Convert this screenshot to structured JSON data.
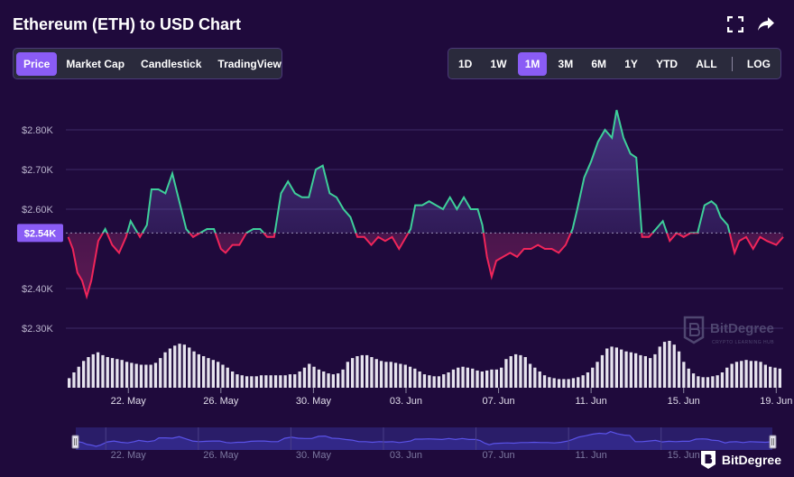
{
  "header": {
    "title": "Ethereum (ETH) to USD Chart"
  },
  "icons": {
    "fullscreen": "fullscreen-icon",
    "share": "share-icon"
  },
  "tabs": [
    {
      "label": "Price",
      "active": true
    },
    {
      "label": "Market Cap",
      "active": false
    },
    {
      "label": "Candlestick",
      "active": false
    },
    {
      "label": "TradingView",
      "active": false
    }
  ],
  "ranges": [
    {
      "label": "1D",
      "active": false
    },
    {
      "label": "1W",
      "active": false
    },
    {
      "label": "1M",
      "active": true
    },
    {
      "label": "3M",
      "active": false
    },
    {
      "label": "6M",
      "active": false
    },
    {
      "label": "1Y",
      "active": false
    },
    {
      "label": "YTD",
      "active": false
    },
    {
      "label": "ALL",
      "active": false
    }
  ],
  "log_label": "LOG",
  "watermark": {
    "name": "BitDegree",
    "sub": "CRYPTO LEARNING HUB"
  },
  "brand": {
    "name": "BitDegree"
  },
  "colors": {
    "up": "#3ecf9a",
    "down": "#f0255a",
    "accent": "#8a5cf5",
    "volume": "#e6e3ee",
    "navigator_line": "#5a52e8"
  },
  "chart_data": {
    "type": "area",
    "title": "Ethereum (ETH) to USD Chart",
    "baseline": 2.54,
    "current_price_label": "$2.54K",
    "ylim": [
      2.2,
      2.9
    ],
    "y_ticks": [
      {
        "label": "$2.30K",
        "value": 2.3
      },
      {
        "label": "$2.40K",
        "value": 2.4
      },
      {
        "label": "$2.60K",
        "value": 2.6
      },
      {
        "label": "$2.70K",
        "value": 2.7
      },
      {
        "label": "$2.80K",
        "value": 2.8
      }
    ],
    "xlim": [
      19.3,
      50.3
    ],
    "x_ticks": [
      {
        "label": "22. May",
        "x": 22
      },
      {
        "label": "26. May",
        "x": 26
      },
      {
        "label": "30. May",
        "x": 30
      },
      {
        "label": "03. Jun",
        "x": 34
      },
      {
        "label": "07. Jun",
        "x": 38
      },
      {
        "label": "11. Jun",
        "x": 42
      },
      {
        "label": "15. Jun",
        "x": 46
      },
      {
        "label": "19. Jun",
        "x": 50
      }
    ],
    "price": [
      {
        "x": 19.4,
        "y": 2.53
      },
      {
        "x": 19.6,
        "y": 2.5
      },
      {
        "x": 19.8,
        "y": 2.44
      },
      {
        "x": 20.0,
        "y": 2.42
      },
      {
        "x": 20.2,
        "y": 2.38
      },
      {
        "x": 20.4,
        "y": 2.42
      },
      {
        "x": 20.7,
        "y": 2.52
      },
      {
        "x": 21.0,
        "y": 2.55
      },
      {
        "x": 21.3,
        "y": 2.51
      },
      {
        "x": 21.6,
        "y": 2.49
      },
      {
        "x": 21.9,
        "y": 2.53
      },
      {
        "x": 22.1,
        "y": 2.57
      },
      {
        "x": 22.3,
        "y": 2.55
      },
      {
        "x": 22.5,
        "y": 2.53
      },
      {
        "x": 22.8,
        "y": 2.56
      },
      {
        "x": 23.0,
        "y": 2.65
      },
      {
        "x": 23.3,
        "y": 2.65
      },
      {
        "x": 23.6,
        "y": 2.64
      },
      {
        "x": 23.9,
        "y": 2.69
      },
      {
        "x": 24.2,
        "y": 2.62
      },
      {
        "x": 24.5,
        "y": 2.55
      },
      {
        "x": 24.8,
        "y": 2.53
      },
      {
        "x": 25.1,
        "y": 2.54
      },
      {
        "x": 25.4,
        "y": 2.55
      },
      {
        "x": 25.7,
        "y": 2.55
      },
      {
        "x": 26.0,
        "y": 2.5
      },
      {
        "x": 26.2,
        "y": 2.49
      },
      {
        "x": 26.5,
        "y": 2.51
      },
      {
        "x": 26.8,
        "y": 2.51
      },
      {
        "x": 27.1,
        "y": 2.54
      },
      {
        "x": 27.4,
        "y": 2.55
      },
      {
        "x": 27.7,
        "y": 2.55
      },
      {
        "x": 28.0,
        "y": 2.53
      },
      {
        "x": 28.3,
        "y": 2.53
      },
      {
        "x": 28.6,
        "y": 2.64
      },
      {
        "x": 28.9,
        "y": 2.67
      },
      {
        "x": 29.2,
        "y": 2.64
      },
      {
        "x": 29.5,
        "y": 2.63
      },
      {
        "x": 29.8,
        "y": 2.63
      },
      {
        "x": 30.1,
        "y": 2.7
      },
      {
        "x": 30.4,
        "y": 2.71
      },
      {
        "x": 30.7,
        "y": 2.64
      },
      {
        "x": 31.0,
        "y": 2.63
      },
      {
        "x": 31.3,
        "y": 2.6
      },
      {
        "x": 31.6,
        "y": 2.58
      },
      {
        "x": 31.9,
        "y": 2.53
      },
      {
        "x": 32.2,
        "y": 2.53
      },
      {
        "x": 32.5,
        "y": 2.51
      },
      {
        "x": 32.8,
        "y": 2.53
      },
      {
        "x": 33.1,
        "y": 2.52
      },
      {
        "x": 33.4,
        "y": 2.53
      },
      {
        "x": 33.7,
        "y": 2.5
      },
      {
        "x": 34.0,
        "y": 2.53
      },
      {
        "x": 34.2,
        "y": 2.55
      },
      {
        "x": 34.4,
        "y": 2.61
      },
      {
        "x": 34.7,
        "y": 2.61
      },
      {
        "x": 35.0,
        "y": 2.62
      },
      {
        "x": 35.3,
        "y": 2.61
      },
      {
        "x": 35.6,
        "y": 2.6
      },
      {
        "x": 35.9,
        "y": 2.63
      },
      {
        "x": 36.2,
        "y": 2.6
      },
      {
        "x": 36.5,
        "y": 2.63
      },
      {
        "x": 36.8,
        "y": 2.6
      },
      {
        "x": 37.1,
        "y": 2.6
      },
      {
        "x": 37.3,
        "y": 2.56
      },
      {
        "x": 37.5,
        "y": 2.48
      },
      {
        "x": 37.7,
        "y": 2.43
      },
      {
        "x": 37.9,
        "y": 2.47
      },
      {
        "x": 38.2,
        "y": 2.48
      },
      {
        "x": 38.5,
        "y": 2.49
      },
      {
        "x": 38.8,
        "y": 2.48
      },
      {
        "x": 39.1,
        "y": 2.5
      },
      {
        "x": 39.4,
        "y": 2.5
      },
      {
        "x": 39.7,
        "y": 2.51
      },
      {
        "x": 40.0,
        "y": 2.5
      },
      {
        "x": 40.3,
        "y": 2.5
      },
      {
        "x": 40.6,
        "y": 2.49
      },
      {
        "x": 40.9,
        "y": 2.51
      },
      {
        "x": 41.2,
        "y": 2.55
      },
      {
        "x": 41.4,
        "y": 2.6
      },
      {
        "x": 41.7,
        "y": 2.68
      },
      {
        "x": 42.0,
        "y": 2.72
      },
      {
        "x": 42.3,
        "y": 2.77
      },
      {
        "x": 42.6,
        "y": 2.8
      },
      {
        "x": 42.9,
        "y": 2.78
      },
      {
        "x": 43.1,
        "y": 2.85
      },
      {
        "x": 43.4,
        "y": 2.78
      },
      {
        "x": 43.7,
        "y": 2.74
      },
      {
        "x": 43.95,
        "y": 2.73
      },
      {
        "x": 44.2,
        "y": 2.53
      },
      {
        "x": 44.5,
        "y": 2.53
      },
      {
        "x": 44.8,
        "y": 2.55
      },
      {
        "x": 45.1,
        "y": 2.57
      },
      {
        "x": 45.4,
        "y": 2.52
      },
      {
        "x": 45.7,
        "y": 2.54
      },
      {
        "x": 46.0,
        "y": 2.53
      },
      {
        "x": 46.3,
        "y": 2.54
      },
      {
        "x": 46.6,
        "y": 2.54
      },
      {
        "x": 46.9,
        "y": 2.61
      },
      {
        "x": 47.2,
        "y": 2.62
      },
      {
        "x": 47.4,
        "y": 2.61
      },
      {
        "x": 47.6,
        "y": 2.58
      },
      {
        "x": 47.9,
        "y": 2.56
      },
      {
        "x": 48.2,
        "y": 2.49
      },
      {
        "x": 48.4,
        "y": 2.52
      },
      {
        "x": 48.7,
        "y": 2.53
      },
      {
        "x": 49.0,
        "y": 2.5
      },
      {
        "x": 49.3,
        "y": 2.53
      },
      {
        "x": 49.6,
        "y": 2.52
      },
      {
        "x": 50.0,
        "y": 2.51
      },
      {
        "x": 50.3,
        "y": 2.53
      }
    ],
    "volume": [
      10,
      16,
      22,
      28,
      32,
      35,
      37,
      34,
      32,
      31,
      30,
      29,
      27,
      26,
      25,
      24,
      24,
      24,
      26,
      31,
      37,
      41,
      44,
      46,
      45,
      42,
      38,
      35,
      33,
      31,
      29,
      27,
      24,
      21,
      17,
      14,
      13,
      12,
      12,
      12,
      13,
      13,
      13,
      13,
      13,
      13,
      14,
      14,
      17,
      21,
      25,
      22,
      19,
      17,
      15,
      14,
      15,
      19,
      27,
      31,
      33,
      34,
      34,
      32,
      30,
      28,
      27,
      27,
      26,
      25,
      24,
      22,
      20,
      17,
      14,
      13,
      12,
      12,
      14,
      16,
      19,
      21,
      22,
      21,
      20,
      18,
      17,
      18,
      19,
      19,
      21,
      30,
      33,
      35,
      34,
      32,
      25,
      21,
      17,
      13,
      11,
      10,
      9,
      9,
      9,
      10,
      11,
      13,
      16,
      21,
      27,
      34,
      41,
      43,
      42,
      40,
      38,
      37,
      36,
      34,
      33,
      31,
      35,
      43,
      48,
      49,
      45,
      38,
      27,
      20,
      15,
      12,
      11,
      11,
      12,
      13,
      16,
      21,
      25,
      27,
      28,
      29,
      28,
      28,
      27,
      24,
      22,
      21,
      20
    ],
    "navigator": {
      "x_ticks": [
        "22. May",
        "26. May",
        "30. May",
        "03. Jun",
        "07. Jun",
        "11. Jun",
        "15. Jun"
      ]
    }
  }
}
